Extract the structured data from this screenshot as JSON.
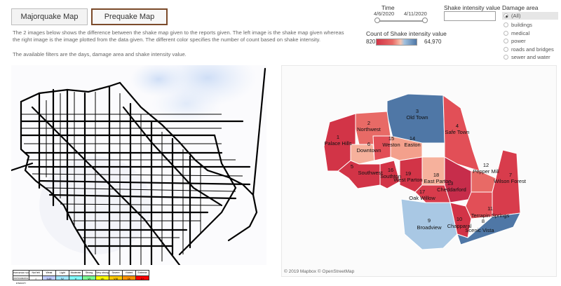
{
  "tabs": [
    {
      "label": "Majorquake Map",
      "active": false
    },
    {
      "label": "Prequake Map",
      "active": true
    }
  ],
  "description": {
    "line1": "The 2 images below shows the difference between the shake map given to the reports given. The left image is the shake map given whereas",
    "line2": "the right image is the image plotted from the data given. The different color specifies the number of count based on shake intensity.",
    "line3": "The available filters are the days, damage area and shake intensity value."
  },
  "time_filter": {
    "title": "Time",
    "start": "4/6/2020",
    "end": "4/11/2020"
  },
  "intensity_filter": {
    "title": "Shake intensity value",
    "value": ""
  },
  "color_legend": {
    "title": "Count of Shake intensity value",
    "min": "820",
    "max": "64,970",
    "colors": {
      "low": "#d23447",
      "high": "#4f77a6"
    }
  },
  "damage_area": {
    "title": "Damage area",
    "options": [
      "(All)",
      "buildings",
      "medical",
      "power",
      "roads and bridges",
      "sewer and water"
    ],
    "selected": "(All)"
  },
  "attribution": "© 2019 Mapbox © OpenStreetMap",
  "regions": [
    {
      "id": "1",
      "name": "Palace Hills",
      "color": "#d23447"
    },
    {
      "id": "2",
      "name": "Northwest",
      "color": "#e86a66"
    },
    {
      "id": "3",
      "name": "Old Town",
      "color": "#4f77a6"
    },
    {
      "id": "4",
      "name": "Safe Town",
      "color": "#e24f57"
    },
    {
      "id": "5",
      "name": "Southwest",
      "color": "#d23447"
    },
    {
      "id": "6",
      "name": "Downtown",
      "color": "#f6b19c"
    },
    {
      "id": "7",
      "name": "Wilson Forest",
      "color": "#d83c4c"
    },
    {
      "id": "8",
      "name": "Scenic Vista",
      "color": "#4f77a6"
    },
    {
      "id": "9",
      "name": "Broadview",
      "color": "#a9c8e4"
    },
    {
      "id": "10",
      "name": "Chapparal",
      "color": "#d23447"
    },
    {
      "id": "11",
      "name": "Terrapin Springs",
      "color": "#e24f57"
    },
    {
      "id": "12",
      "name": "Pepper Mill",
      "color": "#e86a66"
    },
    {
      "id": "13",
      "name": "Cheddarford",
      "color": "#c72d4b"
    },
    {
      "id": "14",
      "name": "Easton",
      "color": "#f3a08c"
    },
    {
      "id": "15",
      "name": "Weston",
      "color": "#e24f57"
    },
    {
      "id": "16",
      "name": "Southton",
      "color": "#d23447"
    },
    {
      "id": "17",
      "name": "Oak Willow",
      "color": "#d83c4c"
    },
    {
      "id": "18",
      "name": "East Parton",
      "color": "#f6b19c"
    },
    {
      "id": "19",
      "name": "West Parton",
      "color": "#d23447"
    }
  ],
  "intensity_scale": {
    "headers": [
      "PERCEIVED SHAKING",
      "Not felt",
      "Weak",
      "Light",
      "Moderate",
      "Strong",
      "Very strong",
      "Severe",
      "Violent",
      "Extreme"
    ],
    "levels": [
      "INSTRUMENTAL INTENSITY",
      "I",
      "II-III",
      "IV",
      "V",
      "VI",
      "VII",
      "VIII",
      "IX",
      "X+"
    ],
    "colors": [
      "#ffffff",
      "#ffffff",
      "#bfccff",
      "#a0e6ff",
      "#80ffff",
      "#7aff93",
      "#ffff00",
      "#ffc800",
      "#ff9100",
      "#ff0000"
    ]
  }
}
